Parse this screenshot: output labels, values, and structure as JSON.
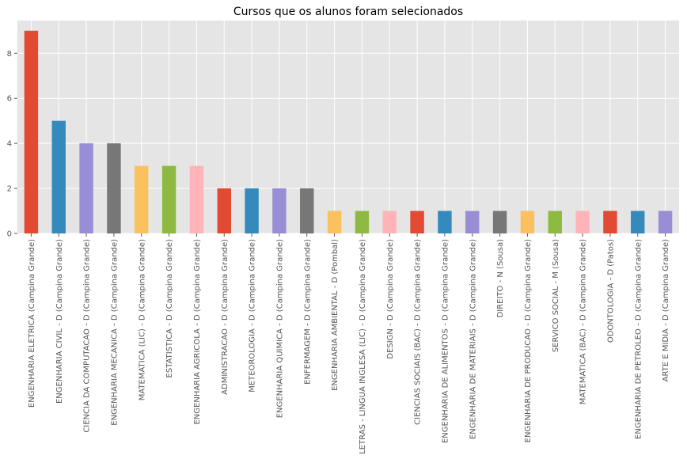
{
  "chart_data": {
    "type": "bar",
    "title": "Cursos que os alunos foram selecionados",
    "xlabel": "",
    "ylabel": "",
    "ylim": [
      0,
      9.45
    ],
    "yticks": [
      0,
      2,
      4,
      6,
      8
    ],
    "grid": true,
    "style": "ggplot",
    "categories": [
      "ENGENHARIA ELETRICA (Campina Grande)",
      "ENGENHARIA CIVIL - D (Campina Grande)",
      "CIENCIA DA COMPUTACAO - D (Campina Grande)",
      "ENGENHARIA MECANICA - D (Campina Grande)",
      "MATEMATICA (LIC) - D (Campina Grande)",
      "ESTATISTICA - D (Campina Grande)",
      "ENGENHARIA AGRICOLA - D (Campina Grande)",
      "ADMINISTRACAO - D (Campina Grande)",
      "METEOROLOGIA - D (Campina Grande)",
      "ENGENHARIA QUIMICA - D (Campina Grande)",
      "ENFERMAGEM - D (Campina Grande)",
      "ENGENHARIA AMBIENTAL - D (Pombal)",
      "LETRAS - LINGUA INGLESA (LIC) - D (Campina Grande)",
      "DESIGN - D (Campina Grande)",
      "CIENCIAS SOCIAIS (BAC) - D (Campina Grande)",
      "ENGENHARIA DE ALIMENTOS - D (Campina Grande)",
      "ENGENHARIA DE MATERIAIS - D (Campina Grande)",
      "DIREITO - N (Sousa)",
      "ENGENHARIA DE PRODUCAO - D (Campina Grande)",
      "SERVICO SOCIAL - M (Sousa)",
      "MATEMATICA (BAC) - D (Campina Grande)",
      "ODONTOLOGIA - D (Patos)",
      "ENGENHARIA DE PETROLEO - D (Campina Grande)",
      "ARTE E MIDIA - D (Campina Grande)"
    ],
    "values": [
      9,
      5,
      4,
      4,
      3,
      3,
      3,
      2,
      2,
      2,
      2,
      1,
      1,
      1,
      1,
      1,
      1,
      1,
      1,
      1,
      1,
      1,
      1,
      1
    ],
    "colors": [
      "#E24A33",
      "#348ABD",
      "#988ED5",
      "#777777",
      "#FBC15E",
      "#8EBA42",
      "#FFB5B8"
    ]
  }
}
